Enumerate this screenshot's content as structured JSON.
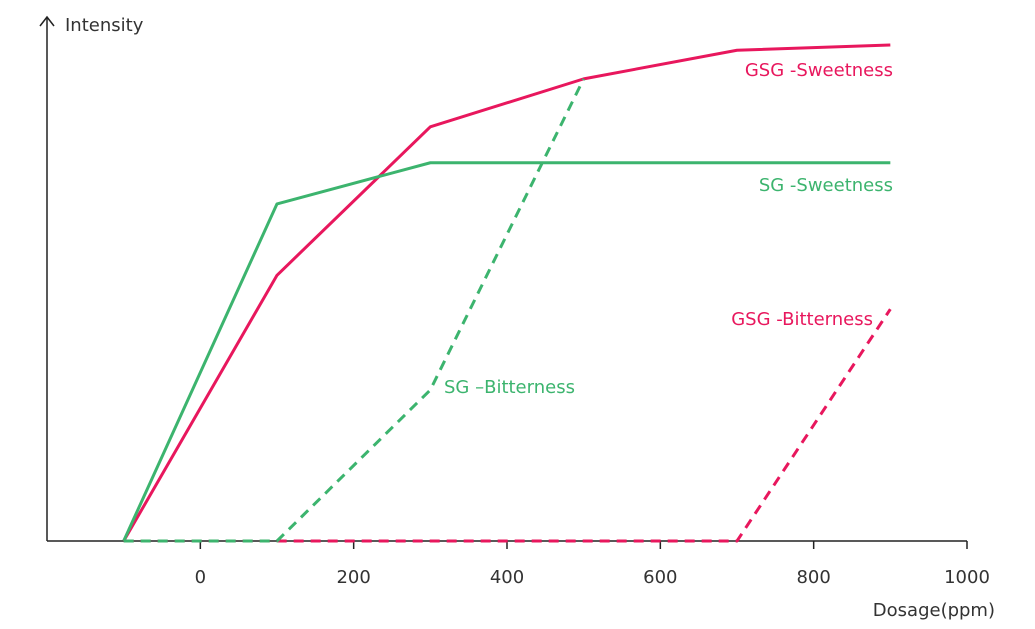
{
  "chart_data": {
    "type": "line",
    "y_label": "Intensity",
    "x_label": "Dosage(ppm)",
    "x": [
      -100,
      100,
      300,
      500,
      700,
      900
    ],
    "xlim": [
      -200,
      1000
    ],
    "xticks": [
      0,
      200,
      400,
      600,
      800,
      1000
    ],
    "ylim": [
      0,
      100
    ],
    "series": [
      {
        "name": "GSG -Sweetness",
        "color": "#e8175d",
        "dashed": false,
        "values": [
          0,
          51,
          79.5,
          88.7,
          94.2,
          95.2
        ]
      },
      {
        "name": "SG -Sweetness",
        "color": "#3cb46e",
        "dashed": false,
        "values": [
          0,
          64.7,
          72.6,
          72.6,
          72.6,
          72.6
        ]
      },
      {
        "name": "GSG -Bitterness",
        "color": "#e8175d",
        "dashed": true,
        "values": [
          0,
          0,
          0,
          0,
          0,
          44.5
        ]
      },
      {
        "name": "SG –Bitterness",
        "color": "#3cb46e",
        "dashed": true,
        "values": [
          0,
          0,
          29,
          88.7,
          null,
          null
        ]
      }
    ]
  }
}
